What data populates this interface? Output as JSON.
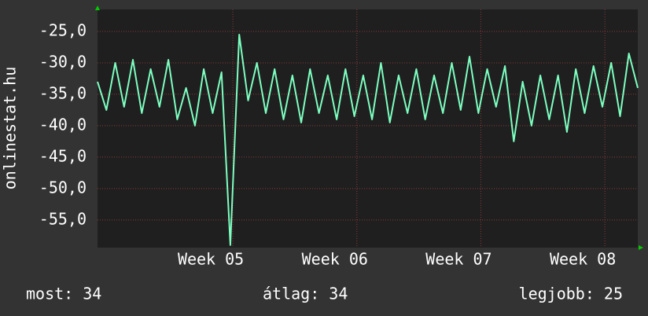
{
  "chart_data": {
    "type": "line",
    "y_label": "onlinestat.hu",
    "x": [
      0,
      0.5,
      1,
      1.5,
      2,
      2.5,
      3,
      3.5,
      4,
      4.5,
      5,
      5.5,
      6,
      6.5,
      7,
      7.5,
      8,
      8.5,
      9,
      9.5,
      10,
      10.5,
      11,
      11.5,
      12,
      12.5,
      13,
      13.5,
      14,
      14.5,
      15,
      15.5,
      16,
      16.5,
      17,
      17.5,
      18,
      18.5,
      19,
      19.5,
      20,
      20.5,
      21,
      21.5,
      22,
      22.5,
      23,
      23.5,
      24,
      24.5,
      25,
      25.5,
      26,
      26.5,
      27,
      27.5,
      28,
      28.5,
      29,
      29.5,
      30,
      30.5
    ],
    "series": [
      {
        "color": "#7dffc0",
        "values": [
          -33,
          -37.5,
          -30,
          -37,
          -29.5,
          -38,
          -31,
          -37,
          -29.5,
          -39,
          -34,
          -40,
          -31,
          -38,
          -31.5,
          -59,
          -25.5,
          -36,
          -30,
          -38,
          -31,
          -39,
          -32,
          -39.5,
          -31,
          -38,
          -32,
          -39,
          -31,
          -38.5,
          -32,
          -39,
          -30,
          -39.5,
          -32,
          -38,
          -31,
          -39,
          -32,
          -38,
          -30,
          -37.5,
          -29,
          -38,
          -31,
          -37,
          -30.5,
          -42.5,
          -33,
          -40,
          -32,
          -39,
          -32,
          -41,
          -31,
          -38,
          -30.5,
          -37,
          -30,
          -38.5,
          -28.5,
          -34
        ]
      }
    ],
    "xlim": [
      0,
      30.5
    ],
    "ylim": [
      -59.4,
      -21.5
    ],
    "xticks": [
      {
        "value": 7.64,
        "label": "Week 05"
      },
      {
        "value": 14.64,
        "label": "Week 06"
      },
      {
        "value": 21.64,
        "label": "Week 07"
      },
      {
        "value": 28.64,
        "label": "Week 08"
      }
    ],
    "yticks": [
      {
        "value": -25,
        "label": "-25,0"
      },
      {
        "value": -30,
        "label": "-30,0"
      },
      {
        "value": -35,
        "label": "-35,0"
      },
      {
        "value": -40,
        "label": "-40,0"
      },
      {
        "value": -45,
        "label": "-45,0"
      },
      {
        "value": -50,
        "label": "-50,0"
      },
      {
        "value": -55,
        "label": "-55,0"
      }
    ],
    "grid": true,
    "footer": [
      "most: 34",
      "átlag: 34",
      "legjobb: 25"
    ]
  }
}
